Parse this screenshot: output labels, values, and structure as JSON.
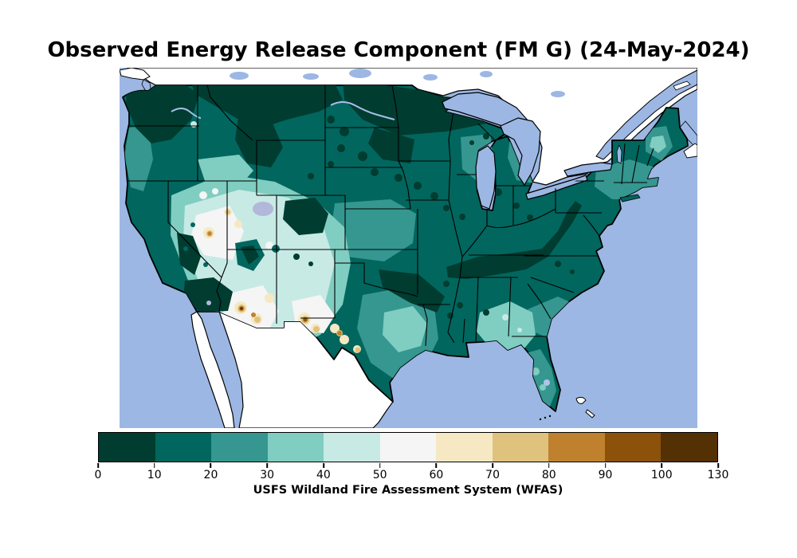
{
  "figure": {
    "title": "Observed Energy Release Component (FM G) (24-May-2024)",
    "variable": "Energy Release Component (ERC), fuel model G",
    "date": "24-May-2024"
  },
  "colorbar": {
    "label": "USFS Wildland Fire Assessment System (WFAS)",
    "tick_labels": [
      "0",
      "10",
      "20",
      "30",
      "40",
      "50",
      "60",
      "70",
      "80",
      "90",
      "100",
      "130"
    ],
    "segments": [
      {
        "range": "0-10",
        "color": "#003c30"
      },
      {
        "range": "10-20",
        "color": "#01665e"
      },
      {
        "range": "20-30",
        "color": "#35978f"
      },
      {
        "range": "30-40",
        "color": "#80cdc1"
      },
      {
        "range": "40-50",
        "color": "#c7eae5"
      },
      {
        "range": "50-60",
        "color": "#f5f5f5"
      },
      {
        "range": "60-70",
        "color": "#f6e8c3"
      },
      {
        "range": "70-80",
        "color": "#dfc27d"
      },
      {
        "range": "80-90",
        "color": "#bf812d"
      },
      {
        "range": "90-100",
        "color": "#8c510a"
      },
      {
        "range": "100-130",
        "color": "#543005"
      }
    ]
  },
  "map": {
    "region": "Contiguous United States",
    "water_color": "#9cb7e3",
    "foreign_land_color": "#ffffff",
    "boundary_color": "#000000",
    "lake_accent_color": "#b2b8da",
    "observations": [
      "Pacific Northwest, northern Rockies, northern Minnesota/Dakotas, Tennessee and southern Appalachians: ERC 0-20 (dark teal)",
      "Great Basin and Southwest (Nevada, Utah, Arizona, New Mexico, far-west Texas): ERC 40-60 (pale mint to white)",
      "Scattered ERC highs 60-130 (tan to dark-brown speckles) in Arizona, New Mexico, Nevada and along the Rio Grande",
      "Alabama-Georgia lighter patch 30-40; Florida peninsula 20-40",
      "Central plains, Midwest, Northeast mostly 10-30 with 0-10 pockets"
    ]
  }
}
